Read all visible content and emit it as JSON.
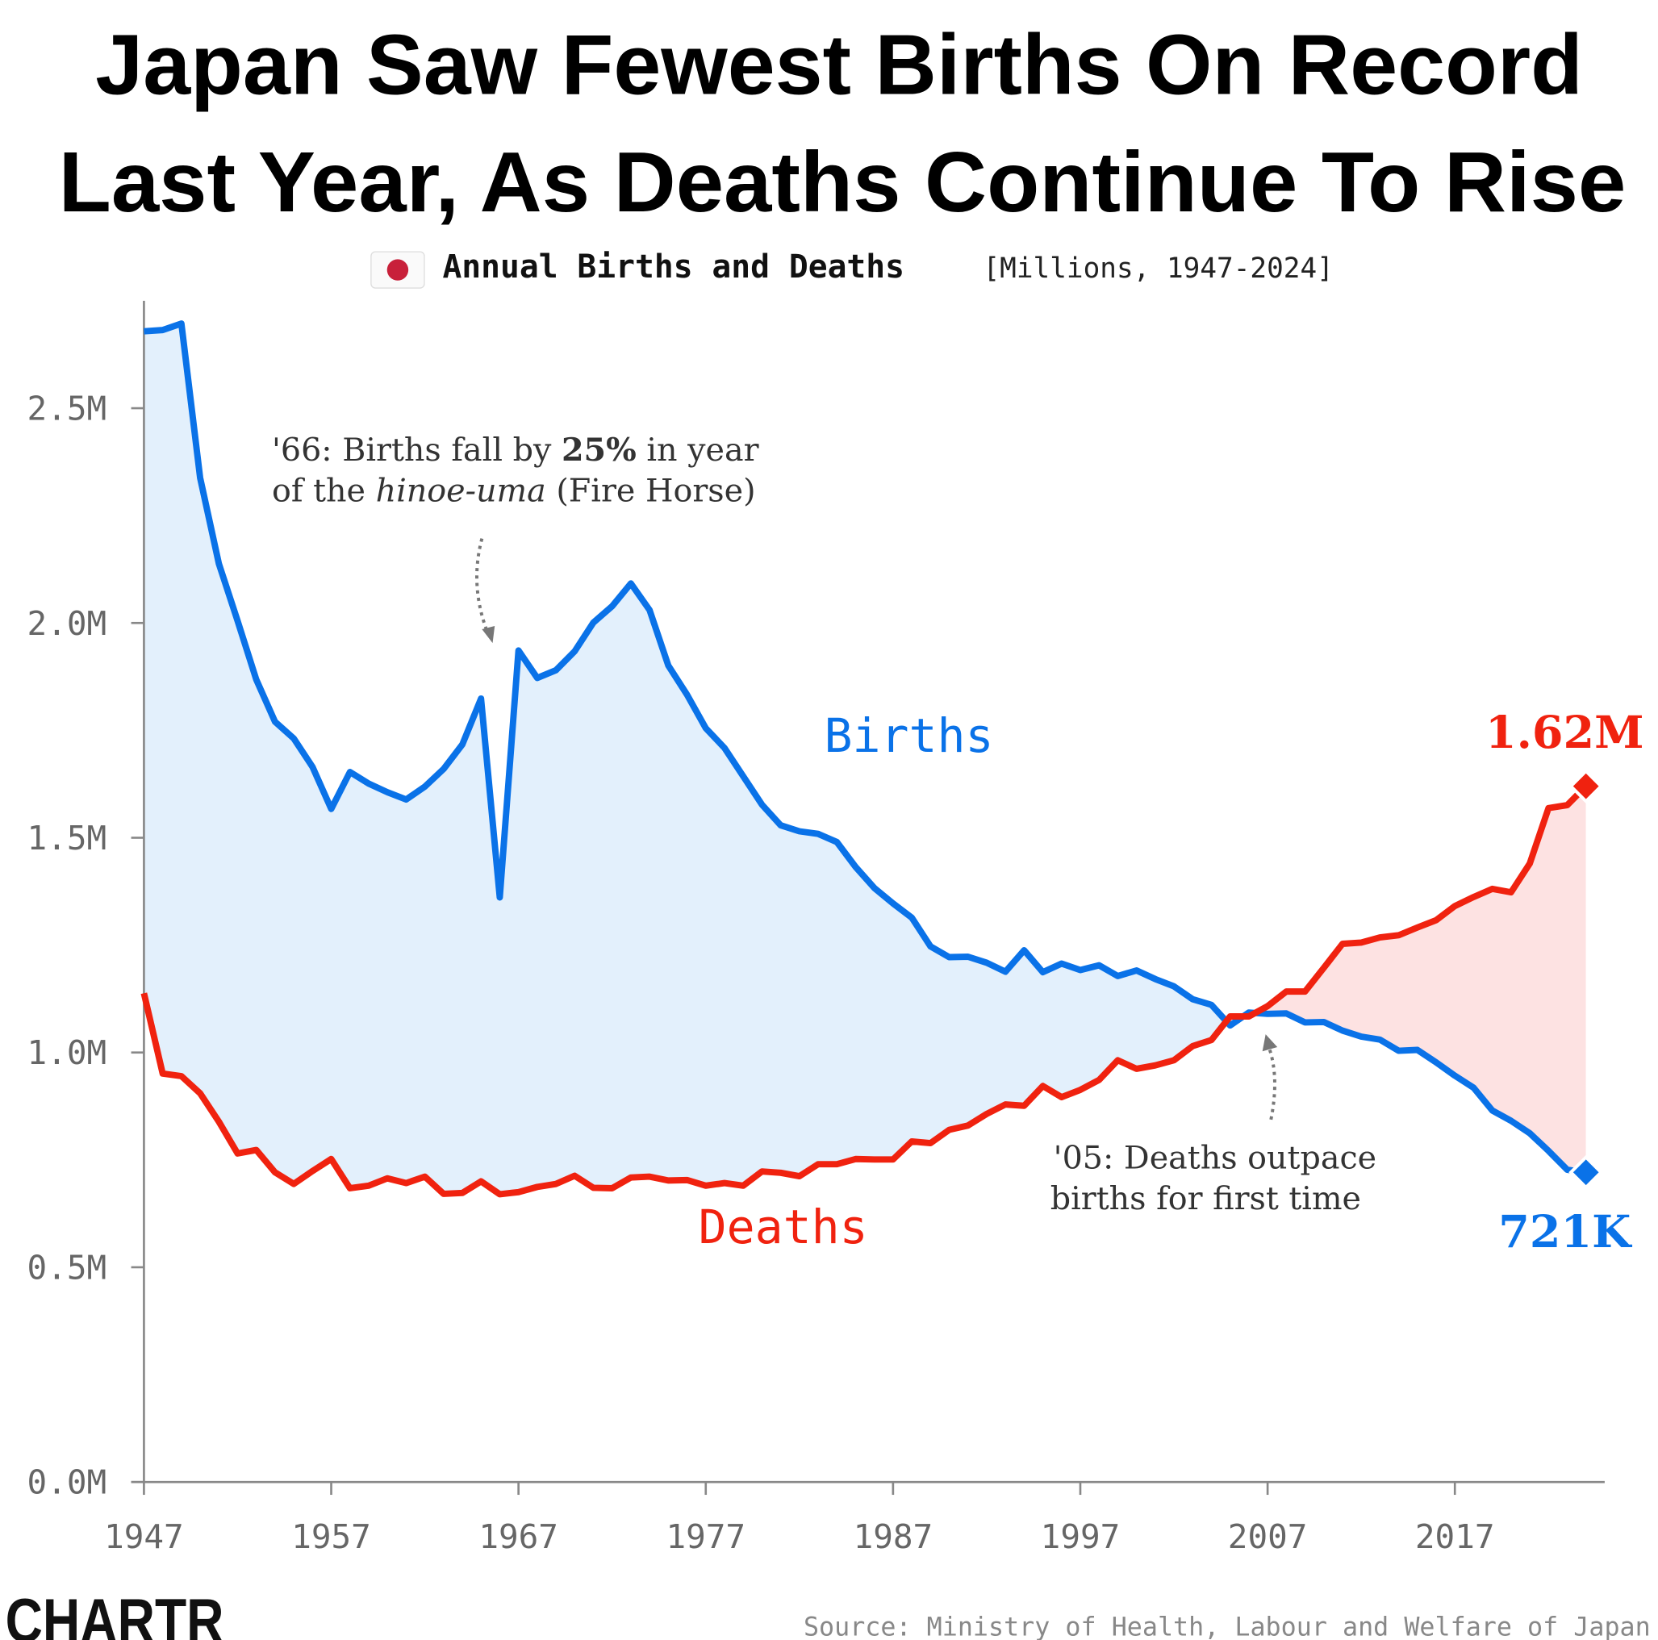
{
  "chart_data": {
    "type": "line",
    "title": [
      "Japan Saw Fewest Births On Record",
      "Last Year, As Deaths Continue To Rise"
    ],
    "subtitle": "Annual Births and Deaths",
    "subtitle_note": "[Millions, 1947-2024]",
    "annotations": [
      {
        "lines": [
          [
            "'66: Births fall by ",
            "25%",
            " in year"
          ],
          [
            "of the ",
            "hinoe-uma",
            " (Fire Horse)"
          ]
        ]
      },
      {
        "lines": [
          [
            "'05: Deaths outpace"
          ],
          [
            "births for first time"
          ]
        ]
      }
    ],
    "source": "Source: Ministry of Health, Labour and Welfare of Japan",
    "logo": "CHARTR",
    "x": [
      1947,
      1948,
      1949,
      1950,
      1951,
      1952,
      1953,
      1954,
      1955,
      1956,
      1957,
      1958,
      1959,
      1960,
      1961,
      1962,
      1963,
      1964,
      1965,
      1966,
      1967,
      1968,
      1969,
      1970,
      1971,
      1972,
      1973,
      1974,
      1975,
      1976,
      1977,
      1978,
      1979,
      1980,
      1981,
      1982,
      1983,
      1984,
      1985,
      1986,
      1987,
      1988,
      1989,
      1990,
      1991,
      1992,
      1993,
      1994,
      1995,
      1996,
      1997,
      1998,
      1999,
      2000,
      2001,
      2002,
      2003,
      2004,
      2005,
      2006,
      2007,
      2008,
      2009,
      2010,
      2011,
      2012,
      2013,
      2014,
      2015,
      2016,
      2017,
      2018,
      2019,
      2020,
      2021,
      2022,
      2023,
      2024
    ],
    "series": [
      {
        "name": "Births",
        "color": "#0a72e8",
        "fill": "#e3f0fc",
        "values": [
          2.679,
          2.682,
          2.697,
          2.338,
          2.138,
          2.005,
          1.868,
          1.77,
          1.731,
          1.665,
          1.567,
          1.653,
          1.626,
          1.606,
          1.589,
          1.619,
          1.66,
          1.717,
          1.824,
          1.361,
          1.936,
          1.872,
          1.89,
          1.934,
          2.001,
          2.039,
          2.092,
          2.03,
          1.901,
          1.833,
          1.755,
          1.709,
          1.643,
          1.577,
          1.529,
          1.515,
          1.509,
          1.49,
          1.432,
          1.383,
          1.347,
          1.314,
          1.247,
          1.222,
          1.223,
          1.209,
          1.188,
          1.238,
          1.187,
          1.207,
          1.192,
          1.203,
          1.178,
          1.191,
          1.171,
          1.154,
          1.124,
          1.111,
          1.063,
          1.093,
          1.09,
          1.091,
          1.07,
          1.071,
          1.051,
          1.037,
          1.03,
          1.004,
          1.006,
          0.977,
          0.946,
          0.918,
          0.865,
          0.841,
          0.812,
          0.771,
          0.727,
          0.721
        ],
        "end_label": "721K"
      },
      {
        "name": "Deaths",
        "color": "#f0220f",
        "fill": "#fde2e2",
        "values": [
          1.138,
          0.951,
          0.945,
          0.905,
          0.839,
          0.765,
          0.773,
          0.721,
          0.694,
          0.724,
          0.752,
          0.684,
          0.69,
          0.707,
          0.696,
          0.711,
          0.671,
          0.673,
          0.7,
          0.67,
          0.675,
          0.687,
          0.694,
          0.713,
          0.685,
          0.684,
          0.709,
          0.711,
          0.702,
          0.703,
          0.69,
          0.696,
          0.69,
          0.723,
          0.72,
          0.712,
          0.74,
          0.74,
          0.752,
          0.751,
          0.751,
          0.793,
          0.789,
          0.82,
          0.83,
          0.857,
          0.879,
          0.876,
          0.922,
          0.896,
          0.913,
          0.936,
          0.982,
          0.962,
          0.97,
          0.982,
          1.015,
          1.029,
          1.084,
          1.084,
          1.108,
          1.142,
          1.142,
          1.197,
          1.253,
          1.256,
          1.268,
          1.273,
          1.291,
          1.308,
          1.341,
          1.362,
          1.381,
          1.373,
          1.44,
          1.569,
          1.576,
          1.62
        ],
        "end_label": "1.62M"
      }
    ],
    "xlim": [
      1947,
      2025
    ],
    "xticks": [
      1947,
      1957,
      1967,
      1977,
      1987,
      1997,
      2007,
      2017
    ],
    "ylim": [
      0,
      2.75
    ],
    "yticks": [
      {
        "value": 0,
        "label": "0.0M"
      },
      {
        "value": 0.5,
        "label": "0.5M"
      },
      {
        "value": 1,
        "label": "1.0M"
      },
      {
        "value": 1.5,
        "label": "1.5M"
      },
      {
        "value": 2,
        "label": "2.0M"
      },
      {
        "value": 2.5,
        "label": "2.5M"
      }
    ],
    "grid": false
  }
}
